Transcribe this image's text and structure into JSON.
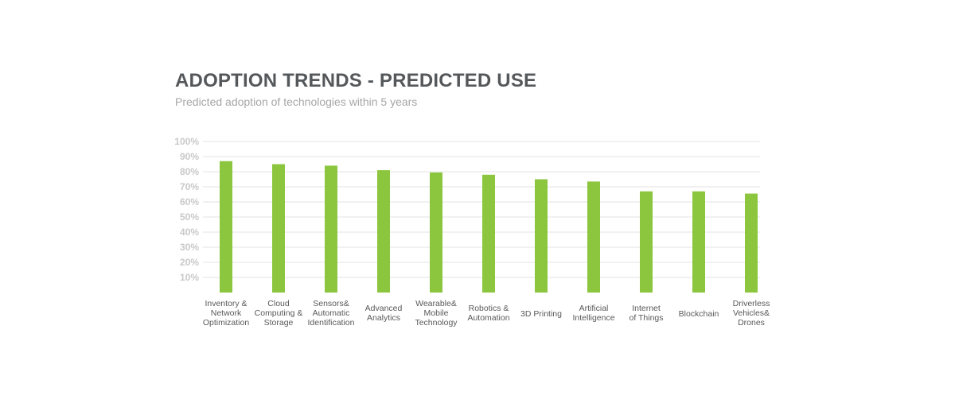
{
  "chart_data": {
    "type": "bar",
    "title": "ADOPTION TRENDS - PREDICTED USE",
    "subtitle": "Predicted adoption of technologies within 5 years",
    "categories": [
      "Inventory & Network Optimization",
      "Cloud Computing & Storage",
      "Sensors& Automatic Identification",
      "Advanced Analytics",
      "Wearable& Mobile Technology",
      "Robotics & Automation",
      "3D Printing",
      "Artificial Intelligence",
      "Internet of Things",
      "Blockchain",
      "Driverless Vehicles& Drones"
    ],
    "category_lines": [
      [
        "Inventory &",
        "Network",
        "Optimization"
      ],
      [
        "Cloud",
        "Computing &",
        "Storage"
      ],
      [
        "Sensors&",
        "Automatic",
        "Identification"
      ],
      [
        "Advanced",
        "Analytics"
      ],
      [
        "Wearable&",
        "Mobile",
        "Technology"
      ],
      [
        "Robotics &",
        "Automation"
      ],
      [
        "3D Printing"
      ],
      [
        "Artificial",
        "Intelligence"
      ],
      [
        "Internet",
        "of Things"
      ],
      [
        "Blockchain"
      ],
      [
        "Driverless",
        "Vehicles&",
        "Drones"
      ]
    ],
    "values": [
      87,
      85,
      84,
      81,
      79.5,
      78,
      75,
      73.5,
      67,
      67,
      65.5
    ],
    "yticks": [
      "10%",
      "20%",
      "30%",
      "40%",
      "50%",
      "60%",
      "70%",
      "80%",
      "90%",
      "100%"
    ],
    "ylim": [
      0,
      100
    ],
    "grid": true,
    "bar_color": "#8cc63f",
    "grid_color": "#e3e3e3",
    "xlabel": "",
    "ylabel": ""
  }
}
